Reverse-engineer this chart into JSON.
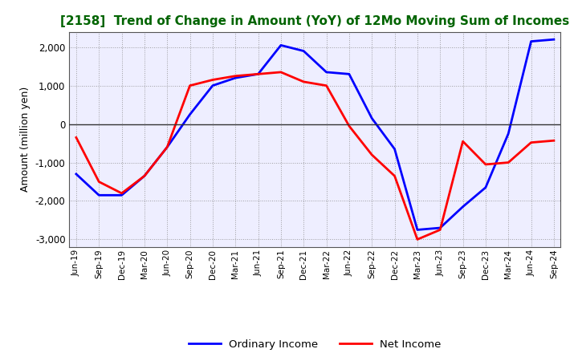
{
  "title": "[2158]  Trend of Change in Amount (YoY) of 12Mo Moving Sum of Incomes",
  "ylabel": "Amount (million yen)",
  "xlabels": [
    "Jun-19",
    "Sep-19",
    "Dec-19",
    "Mar-20",
    "Jun-20",
    "Sep-20",
    "Dec-20",
    "Mar-21",
    "Jun-21",
    "Sep-21",
    "Dec-21",
    "Mar-22",
    "Jun-22",
    "Sep-22",
    "Dec-22",
    "Mar-23",
    "Jun-23",
    "Sep-23",
    "Dec-23",
    "Mar-24",
    "Jun-24",
    "Sep-24"
  ],
  "ordinary_income": [
    -1300,
    -1850,
    -1850,
    -1350,
    -600,
    250,
    1000,
    1200,
    1300,
    2050,
    1900,
    1350,
    1300,
    150,
    -650,
    -2750,
    -2700,
    -2150,
    -1650,
    -250,
    2150,
    2200
  ],
  "net_income": [
    -350,
    -1500,
    -1800,
    -1350,
    -600,
    1000,
    1150,
    1250,
    1300,
    1350,
    1100,
    1000,
    -50,
    -800,
    -1350,
    -3000,
    -2750,
    -450,
    -1050,
    -1000,
    -480,
    -430
  ],
  "ordinary_color": "#0000FF",
  "net_color": "#FF0000",
  "ylim": [
    -3200,
    2400
  ],
  "yticks": [
    -3000,
    -2000,
    -1000,
    0,
    1000,
    2000
  ],
  "bg_color": "#FFFFFF",
  "plot_bg_color": "#EEEEFF",
  "grid_color": "#888888",
  "legend_ordinary": "Ordinary Income",
  "legend_net": "Net Income",
  "title_color": "#006400",
  "line_width": 2.0
}
